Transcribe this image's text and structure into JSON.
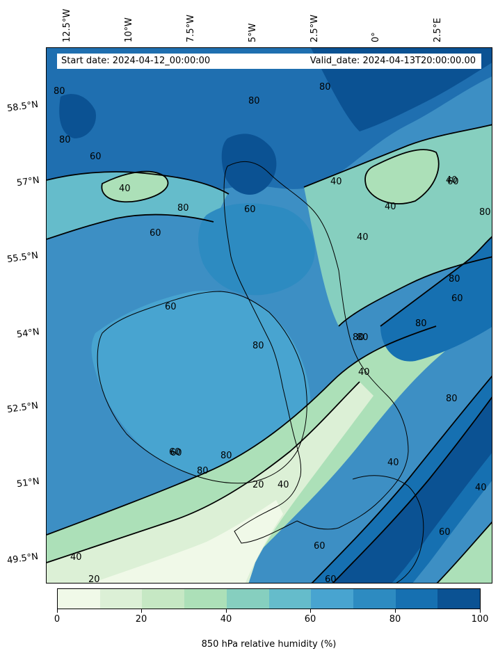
{
  "map": {
    "start_date": "Start date: 2024-04-12_00:00:00",
    "valid_date": "Valid_date: 2024-04-13T20:00:00.00",
    "longitude_labels": [
      "12.5°W",
      "10°W",
      "7.5°W",
      "5°W",
      "2.5°W",
      "0°",
      "2.5°E"
    ],
    "latitude_labels": [
      "58.5°N",
      "57°N",
      "55.5°N",
      "54°N",
      "52.5°N",
      "51°N",
      "49.5°N"
    ],
    "contour_labels": [
      "80",
      "80",
      "60",
      "40",
      "60",
      "80",
      "60",
      "80",
      "60",
      "40",
      "40",
      "40",
      "80",
      "60",
      "80",
      "40",
      "80",
      "60",
      "80",
      "80",
      "80",
      "80",
      "60",
      "40",
      "60",
      "20",
      "40",
      "60",
      "80",
      "80",
      "40",
      "40",
      "20",
      "60",
      "60",
      "40",
      "80"
    ],
    "colormap": "YlGnBu-like (light green to dark blue)"
  },
  "colorbar": {
    "title": "850 hPa relative humidity (%)",
    "tick_labels": [
      "0",
      "20",
      "40",
      "60",
      "80",
      "100"
    ],
    "levels": [
      0,
      10,
      20,
      30,
      40,
      50,
      60,
      70,
      80,
      90,
      100
    ],
    "colors": [
      "#f0f9e8",
      "#dcf0d6",
      "#c6e8c4",
      "#ace0b8",
      "#86cfbf",
      "#65bccb",
      "#48a4d0",
      "#2d8bc1",
      "#1670b1",
      "#0b5293"
    ]
  }
}
